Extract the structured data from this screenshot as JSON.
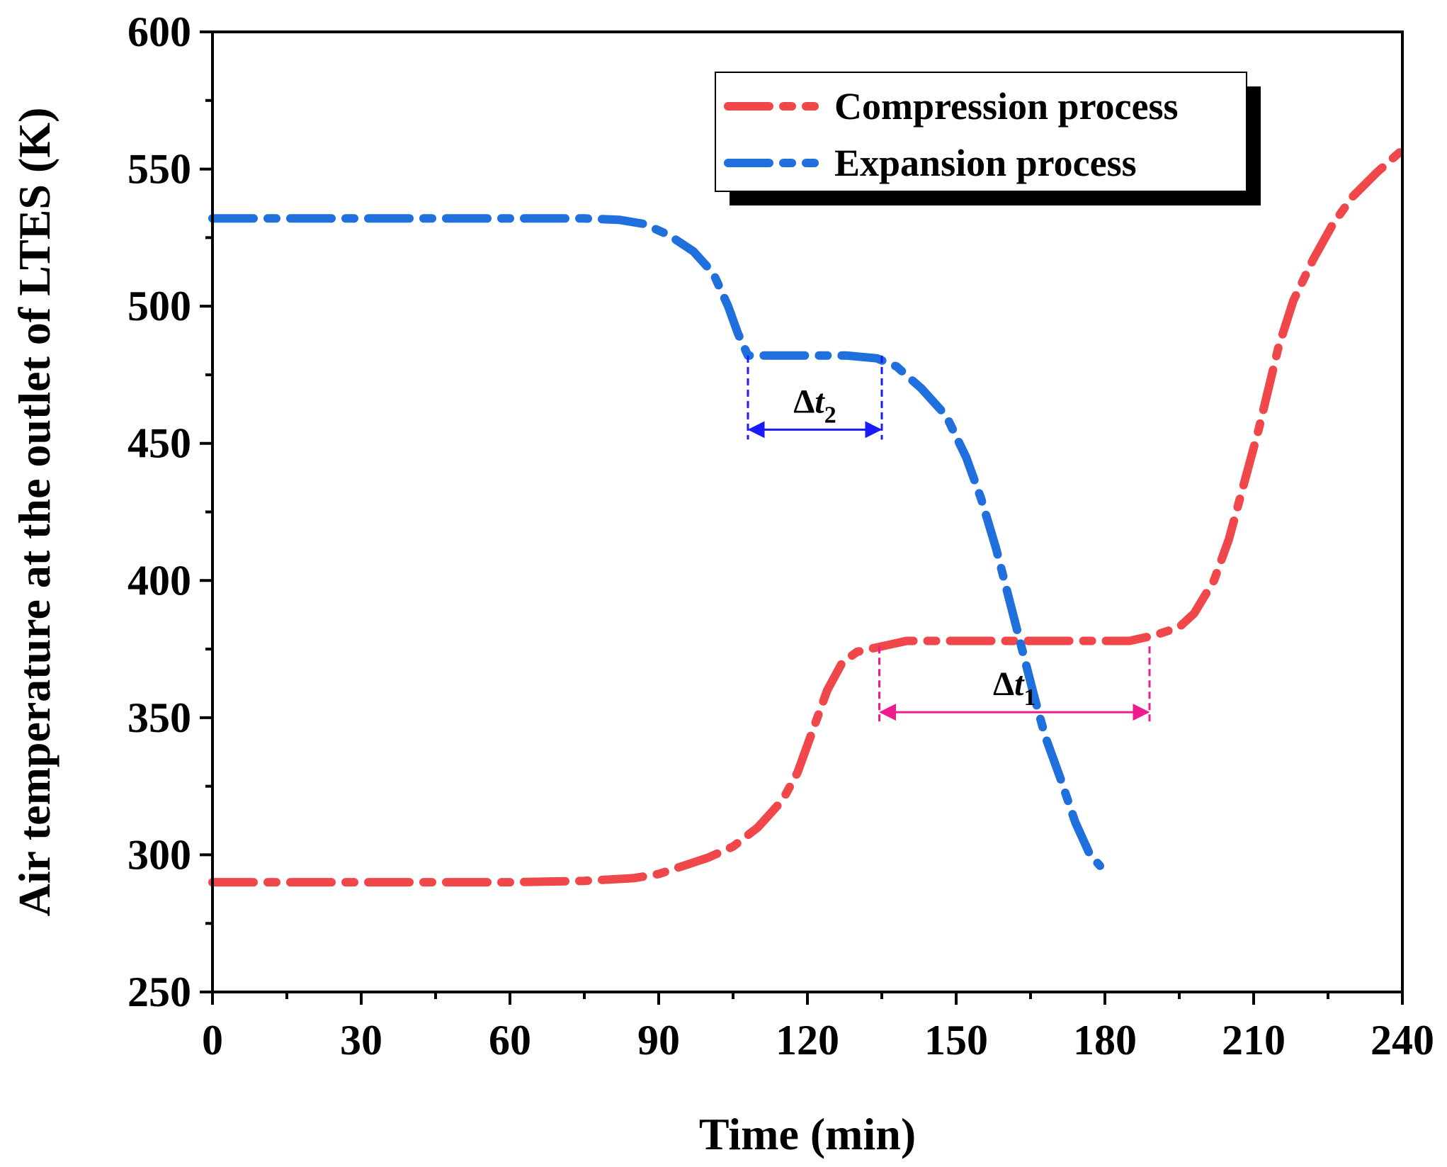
{
  "chart_data": {
    "type": "line",
    "title": "",
    "xlabel": "Time (min)",
    "ylabel": "Air temperature at the outlet of LTES (K)",
    "xlim": [
      0,
      240
    ],
    "ylim": [
      250,
      600
    ],
    "x_ticks": [
      0,
      30,
      60,
      90,
      120,
      150,
      180,
      210,
      240
    ],
    "y_ticks": [
      250,
      300,
      350,
      400,
      450,
      500,
      550,
      600
    ],
    "x_minor_step": 15,
    "y_minor_step": 25,
    "legend_position": "top-right",
    "series": [
      {
        "name": "Compression process",
        "color": "#f0484a",
        "style": "dash-dot",
        "points": [
          [
            0,
            290
          ],
          [
            20,
            290
          ],
          [
            40,
            290
          ],
          [
            60,
            290
          ],
          [
            75,
            290.5
          ],
          [
            85,
            291.5
          ],
          [
            90,
            293
          ],
          [
            95,
            296
          ],
          [
            100,
            299
          ],
          [
            105,
            303
          ],
          [
            110,
            310
          ],
          [
            115,
            320
          ],
          [
            118,
            330
          ],
          [
            121,
            345
          ],
          [
            124,
            360
          ],
          [
            127,
            370
          ],
          [
            130,
            374
          ],
          [
            135,
            376
          ],
          [
            140,
            378
          ],
          [
            150,
            378
          ],
          [
            160,
            378
          ],
          [
            170,
            378
          ],
          [
            180,
            378
          ],
          [
            185,
            378
          ],
          [
            190,
            380
          ],
          [
            195,
            383
          ],
          [
            198,
            388
          ],
          [
            202,
            400
          ],
          [
            205,
            415
          ],
          [
            208,
            435
          ],
          [
            211,
            455
          ],
          [
            213,
            470
          ],
          [
            215,
            485
          ],
          [
            218,
            502
          ],
          [
            222,
            517
          ],
          [
            226,
            530
          ],
          [
            230,
            540
          ],
          [
            235,
            549
          ],
          [
            240,
            557
          ]
        ]
      },
      {
        "name": "Expansion process",
        "color": "#1f6fdc",
        "style": "dash-dot",
        "points": [
          [
            0,
            532
          ],
          [
            20,
            532
          ],
          [
            40,
            532
          ],
          [
            60,
            532
          ],
          [
            75,
            532
          ],
          [
            82,
            531.5
          ],
          [
            87,
            530
          ],
          [
            92,
            526
          ],
          [
            97,
            520
          ],
          [
            101,
            512
          ],
          [
            104,
            500
          ],
          [
            106,
            490
          ],
          [
            108,
            482
          ],
          [
            112,
            482
          ],
          [
            120,
            482
          ],
          [
            128,
            482
          ],
          [
            134,
            481
          ],
          [
            138,
            478
          ],
          [
            143,
            470
          ],
          [
            148,
            460
          ],
          [
            152,
            445
          ],
          [
            155,
            430
          ],
          [
            158,
            412
          ],
          [
            160,
            398
          ],
          [
            162,
            384
          ],
          [
            164,
            370
          ],
          [
            166,
            356
          ],
          [
            168,
            343
          ],
          [
            171,
            328
          ],
          [
            174,
            312
          ],
          [
            177,
            300
          ],
          [
            179,
            296
          ]
        ]
      }
    ],
    "annotations": [
      {
        "label_main": "Δt",
        "label_sub": "2",
        "x_start": 108,
        "x_end": 135,
        "y_arrow": 455,
        "y_top": 482,
        "color": "#1a1aff"
      },
      {
        "label_main": "Δt",
        "label_sub": "1",
        "x_start": 134.5,
        "x_end": 189,
        "y_arrow": 352,
        "y_top": 376,
        "color": "#ee1c8c"
      }
    ]
  }
}
